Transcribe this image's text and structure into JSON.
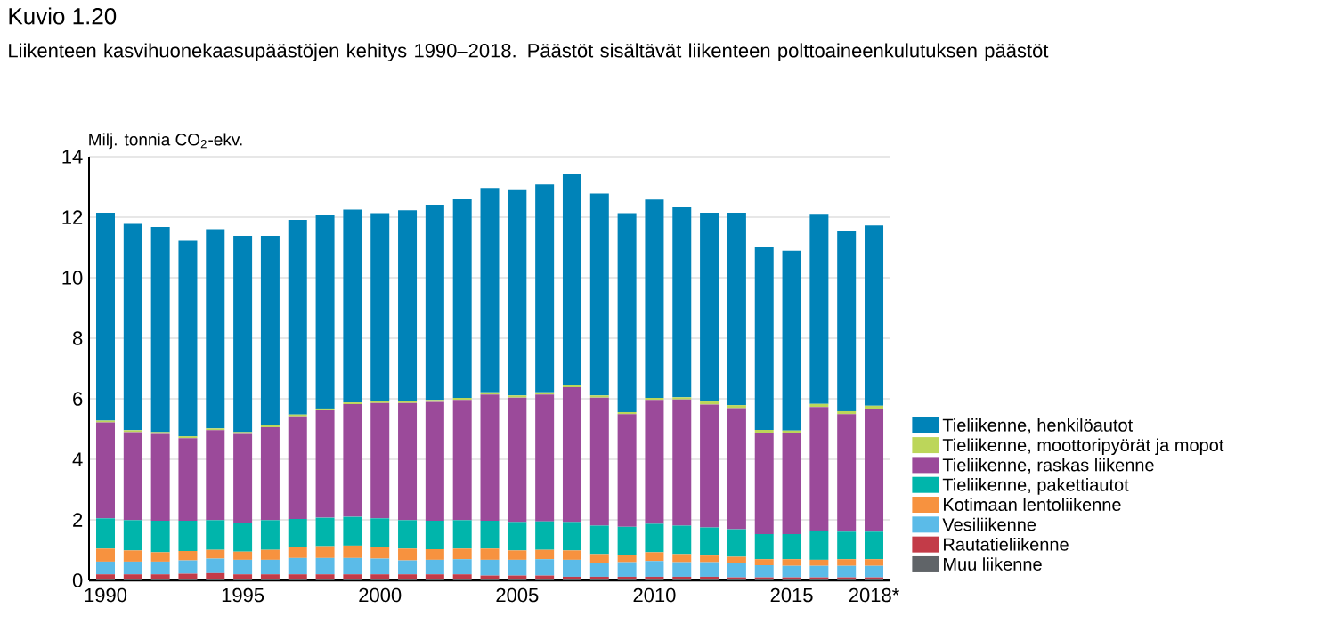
{
  "chart_data": {
    "type": "bar",
    "stacked": true,
    "title": "Kuvio 1.20",
    "subtitle": "Liikenteen kasvihuonekaasupäästöjen kehitys 1990–2018. Päästöt sisältävät liikenteen polttoaineenkulutuksen päästöt",
    "ylabel": "Milj. tonnia CO$_{2}$-ekv.",
    "categories": [
      "1990",
      null,
      null,
      null,
      null,
      "1995",
      null,
      null,
      null,
      null,
      "2000",
      null,
      null,
      null,
      null,
      "2005",
      null,
      null,
      null,
      null,
      "2010",
      null,
      null,
      null,
      null,
      "2015",
      null,
      null,
      "2018*"
    ],
    "ylim": [
      0,
      14
    ],
    "yticks": [
      0,
      2,
      4,
      6,
      8,
      10,
      12,
      14
    ],
    "grid": "y",
    "legend": "right",
    "series": [
      {
        "name": "Muu liikenne",
        "color": "#606468",
        "values": [
          0.05,
          0.05,
          0.05,
          0.05,
          0.05,
          0.05,
          0.05,
          0.05,
          0.05,
          0.05,
          0.05,
          0.05,
          0.05,
          0.05,
          0.05,
          0.05,
          0.05,
          0.05,
          0.05,
          0.05,
          0.05,
          0.05,
          0.05,
          0.05,
          0.05,
          0.05,
          0.05,
          0.05,
          0.05
        ]
      },
      {
        "name": "Rautatieliikenne",
        "color": "#c33b48",
        "values": [
          0.15,
          0.15,
          0.15,
          0.17,
          0.19,
          0.15,
          0.15,
          0.15,
          0.15,
          0.15,
          0.15,
          0.15,
          0.15,
          0.15,
          0.11,
          0.11,
          0.11,
          0.07,
          0.07,
          0.07,
          0.07,
          0.07,
          0.07,
          0.05,
          0.05,
          0.05,
          0.05,
          0.05,
          0.05
        ]
      },
      {
        "name": "Vesiliikenne",
        "color": "#5bbbe8",
        "values": [
          0.42,
          0.42,
          0.42,
          0.44,
          0.48,
          0.48,
          0.48,
          0.54,
          0.54,
          0.54,
          0.52,
          0.46,
          0.48,
          0.5,
          0.52,
          0.52,
          0.54,
          0.56,
          0.46,
          0.48,
          0.52,
          0.48,
          0.48,
          0.46,
          0.4,
          0.38,
          0.38,
          0.38,
          0.38
        ]
      },
      {
        "name": "Kotimaan lentoliikenne",
        "color": "#f7923f",
        "values": [
          0.43,
          0.37,
          0.31,
          0.31,
          0.29,
          0.27,
          0.33,
          0.35,
          0.39,
          0.41,
          0.39,
          0.39,
          0.35,
          0.35,
          0.37,
          0.31,
          0.31,
          0.31,
          0.29,
          0.23,
          0.29,
          0.27,
          0.22,
          0.22,
          0.2,
          0.22,
          0.2,
          0.22,
          0.22
        ]
      },
      {
        "name": "Tieliikenne, pakettiautot",
        "color": "#00b5ab",
        "values": [
          1.0,
          1.0,
          1.04,
          1.0,
          0.98,
          0.96,
          0.98,
          0.94,
          0.94,
          0.95,
          0.94,
          0.94,
          0.94,
          0.94,
          0.92,
          0.94,
          0.94,
          0.94,
          0.94,
          0.94,
          0.94,
          0.94,
          0.93,
          0.91,
          0.83,
          0.83,
          0.97,
          0.91,
          0.91
        ]
      },
      {
        "name": "Tieliikenne, raskas liikenne",
        "color": "#9b4a9a",
        "values": [
          3.17,
          2.91,
          2.87,
          2.73,
          2.97,
          2.93,
          3.07,
          3.39,
          3.55,
          3.72,
          3.81,
          3.87,
          3.93,
          3.97,
          4.17,
          4.11,
          4.19,
          4.45,
          4.23,
          3.72,
          4.09,
          4.17,
          4.06,
          4.0,
          3.34,
          3.32,
          4.08,
          3.88,
          4.06
        ]
      },
      {
        "name": "Tieliikenne, moottoripyörät ja mopot",
        "color": "#bcd65a",
        "values": [
          0.06,
          0.06,
          0.06,
          0.06,
          0.06,
          0.06,
          0.06,
          0.06,
          0.06,
          0.06,
          0.06,
          0.06,
          0.06,
          0.07,
          0.07,
          0.07,
          0.07,
          0.07,
          0.07,
          0.07,
          0.07,
          0.07,
          0.1,
          0.1,
          0.1,
          0.1,
          0.1,
          0.1,
          0.1
        ]
      },
      {
        "name": "Tieliikenne, henkilöautot",
        "color": "#0083b8",
        "values": [
          6.87,
          6.82,
          6.78,
          6.46,
          6.58,
          6.48,
          6.26,
          6.43,
          6.41,
          6.37,
          6.21,
          6.31,
          6.45,
          6.59,
          6.75,
          6.81,
          6.87,
          6.97,
          6.67,
          6.57,
          6.55,
          6.28,
          6.24,
          6.36,
          6.06,
          5.94,
          6.28,
          5.94,
          5.96
        ]
      }
    ]
  }
}
